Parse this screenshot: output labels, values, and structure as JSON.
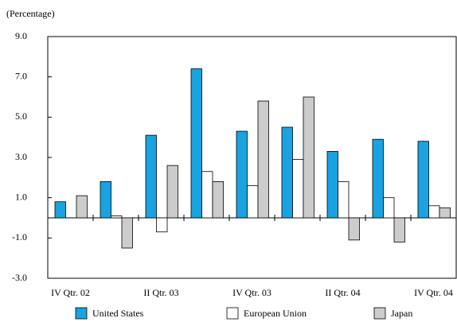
{
  "chart_data": {
    "type": "bar",
    "y_label": "(Percentage)",
    "categories": [
      "IV Qtr. 02",
      null,
      "II Qtr. 03",
      null,
      "IV Qtr. 03",
      null,
      "II Qtr. 04",
      null,
      "IV Qtr. 04"
    ],
    "series": [
      {
        "name": "United States",
        "color": "#1aa3e0",
        "values": [
          0.8,
          1.8,
          4.1,
          7.4,
          4.3,
          4.5,
          3.3,
          3.9,
          3.8
        ]
      },
      {
        "name": "European Union",
        "color": "#ffffff",
        "values": [
          0,
          0.1,
          -0.7,
          2.3,
          1.6,
          2.9,
          1.8,
          1.0,
          0.6
        ]
      },
      {
        "name": "Japan",
        "color": "#cccccc",
        "values": [
          1.1,
          -1.5,
          2.6,
          1.8,
          5.8,
          6.0,
          -1.1,
          -1.2,
          0.5
        ]
      }
    ],
    "ylim": [
      -3,
      9
    ],
    "yticks": [
      {
        "value": 9,
        "label": "9.0"
      },
      {
        "value": 7,
        "label": "7.0"
      },
      {
        "value": 5,
        "label": "5.0"
      },
      {
        "value": 3,
        "label": "3.0"
      },
      {
        "value": 1,
        "label": "1.0"
      },
      {
        "value": -1,
        "label": "-1.0"
      },
      {
        "value": -3,
        "label": "-3.0"
      }
    ],
    "legend": "bottom"
  }
}
